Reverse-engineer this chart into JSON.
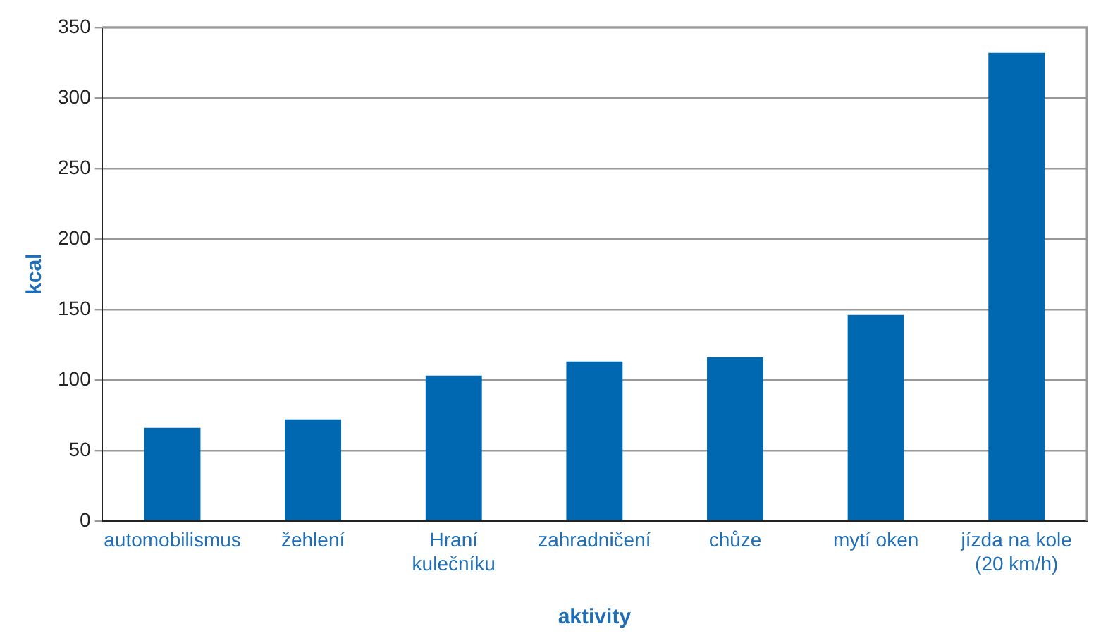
{
  "chart_data": {
    "type": "bar",
    "xlabel": "aktivity",
    "ylabel": "kcal",
    "categories": [
      "automobilismus",
      "žehlení",
      "Hraní kulečníku",
      "zahradničení",
      "chůze",
      "mytí oken",
      "jízda na kole (20 km/h)"
    ],
    "values": [
      66,
      72,
      103,
      113,
      116,
      146,
      332
    ],
    "color": "#0068b0",
    "ylim": [
      0,
      350
    ],
    "yticks": [
      0,
      50,
      100,
      150,
      200,
      250,
      300,
      350
    ],
    "grid": "y",
    "legend": false
  }
}
